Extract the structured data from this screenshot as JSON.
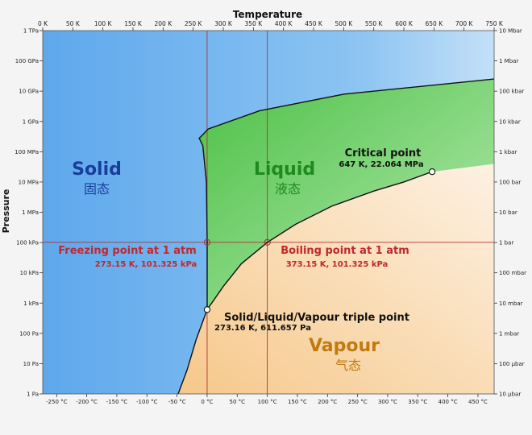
{
  "chart_data": {
    "type": "phase-diagram",
    "top_axis": {
      "title": "Temperature",
      "ticks": [
        {
          "label": "0 K",
          "K": 0
        },
        {
          "label": "50 K",
          "K": 50
        },
        {
          "label": "100 K",
          "K": 100
        },
        {
          "label": "150 K",
          "K": 150
        },
        {
          "label": "200 K",
          "K": 200
        },
        {
          "label": "250 K",
          "K": 250
        },
        {
          "label": "300 K",
          "K": 300
        },
        {
          "label": "350 K",
          "K": 350
        },
        {
          "label": "400 K",
          "K": 400
        },
        {
          "label": "450 K",
          "K": 450
        },
        {
          "label": "500 K",
          "K": 500
        },
        {
          "label": "550 K",
          "K": 550
        },
        {
          "label": "600 K",
          "K": 600
        },
        {
          "label": "650 K",
          "K": 650
        },
        {
          "label": "700 K",
          "K": 700
        },
        {
          "label": "750 K",
          "K": 750
        }
      ]
    },
    "bottom_axis": {
      "ticks": [
        {
          "label": "-250 °C",
          "K": 23.15
        },
        {
          "label": "-200 °C",
          "K": 73.15
        },
        {
          "label": "-150 °C",
          "K": 123.15
        },
        {
          "label": "-100 °C",
          "K": 173.15
        },
        {
          "label": "-50 °C",
          "K": 223.15
        },
        {
          "label": "0 °C",
          "K": 273.15
        },
        {
          "label": "50 °C",
          "K": 323.15
        },
        {
          "label": "100 °C",
          "K": 373.15
        },
        {
          "label": "150 °C",
          "K": 423.15
        },
        {
          "label": "200 °C",
          "K": 473.15
        },
        {
          "label": "250 °C",
          "K": 523.15
        },
        {
          "label": "300 °C",
          "K": 573.15
        },
        {
          "label": "350 °C",
          "K": 623.15
        },
        {
          "label": "400 °C",
          "K": 673.15
        },
        {
          "label": "450 °C",
          "K": 723.15
        }
      ]
    },
    "left_axis": {
      "title": "Pressure",
      "ticks": [
        {
          "label": "1 TPa",
          "log10Pa": 12
        },
        {
          "label": "100 GPa",
          "log10Pa": 11
        },
        {
          "label": "10 GPa",
          "log10Pa": 10
        },
        {
          "label": "1 GPa",
          "log10Pa": 9
        },
        {
          "label": "100 MPa",
          "log10Pa": 8
        },
        {
          "label": "10 MPa",
          "log10Pa": 7
        },
        {
          "label": "1 MPa",
          "log10Pa": 6
        },
        {
          "label": "100 kPa",
          "log10Pa": 5
        },
        {
          "label": "10 kPa",
          "log10Pa": 4
        },
        {
          "label": "1 kPa",
          "log10Pa": 3
        },
        {
          "label": "100 Pa",
          "log10Pa": 2
        },
        {
          "label": "10 Pa",
          "log10Pa": 1
        },
        {
          "label": "1 Pa",
          "log10Pa": 0
        }
      ]
    },
    "right_axis": {
      "ticks": [
        {
          "label": "10 Mbar",
          "log10Pa": 12
        },
        {
          "label": "1 Mbar",
          "log10Pa": 11
        },
        {
          "label": "100 kbar",
          "log10Pa": 10
        },
        {
          "label": "10 kbar",
          "log10Pa": 9
        },
        {
          "label": "1 kbar",
          "log10Pa": 8
        },
        {
          "label": "100 bar",
          "log10Pa": 7
        },
        {
          "label": "10 bar",
          "log10Pa": 6
        },
        {
          "label": "1 bar",
          "log10Pa": 5
        },
        {
          "label": "100 mbar",
          "log10Pa": 4
        },
        {
          "label": "10 mbar",
          "log10Pa": 3
        },
        {
          "label": "1 mbar",
          "log10Pa": 2
        },
        {
          "label": "100 µbar",
          "log10Pa": 1
        },
        {
          "label": "10 µbar",
          "log10Pa": 0
        }
      ]
    },
    "x_range_K": [
      0,
      750
    ],
    "y_range_log10Pa": [
      0,
      12
    ],
    "y_scale": "log",
    "regions": [
      {
        "name": "Solid",
        "name_zh": "固态",
        "color": "#1a3d9c",
        "fill": "#6fb4ee"
      },
      {
        "name": "Liquid",
        "name_zh": "液态",
        "color": "#1e8a1e",
        "fill": "#6fd26a"
      },
      {
        "name": "Vapour",
        "name_zh": "气态",
        "color": "#c07a10",
        "fill": "#f9d9ac"
      }
    ],
    "points": [
      {
        "name": "Critical point",
        "value": "647 K, 22.064 MPa",
        "K": 647,
        "log10Pa": 7.34,
        "color": "#111111"
      },
      {
        "name": "Freezing point at 1 atm",
        "value": "273.15 K, 101.325 kPa",
        "K": 273.15,
        "log10Pa": 5.006,
        "color": "#c0282c"
      },
      {
        "name": "Boiling point at 1 atm",
        "value": "373.15 K, 101.325 kPa",
        "K": 373.15,
        "log10Pa": 5.006,
        "color": "#c0282c"
      },
      {
        "name": "Solid/Liquid/Vapour triple point",
        "value": "273.16 K, 611.657 Pa",
        "K": 273.16,
        "log10Pa": 2.786,
        "color": "#111111"
      }
    ],
    "curves": {
      "sublimation": [
        [
          225,
          0
        ],
        [
          240,
          0.8
        ],
        [
          255,
          1.8
        ],
        [
          273.16,
          2.786
        ]
      ],
      "vaporization": [
        [
          273.16,
          2.786
        ],
        [
          300,
          3.55
        ],
        [
          330,
          4.3
        ],
        [
          373.15,
          5.006
        ],
        [
          420,
          5.6
        ],
        [
          480,
          6.2
        ],
        [
          550,
          6.7
        ],
        [
          600,
          7.0
        ],
        [
          647,
          7.34
        ]
      ],
      "melting": [
        [
          273.16,
          2.786
        ],
        [
          273.15,
          5.0
        ],
        [
          272,
          7.0
        ],
        [
          266,
          8.2
        ],
        [
          260,
          8.45
        ],
        [
          263,
          8.5
        ],
        [
          275,
          8.75
        ],
        [
          360,
          9.35
        ],
        [
          500,
          9.9
        ],
        [
          750,
          10.4
        ]
      ]
    },
    "reference_lines": [
      {
        "type": "vertical",
        "K": 273.15
      },
      {
        "type": "vertical",
        "K": 373.15
      },
      {
        "type": "horizontal",
        "log10Pa": 5.006
      }
    ],
    "colors": {
      "solid_fill": "#6fb4ee",
      "liquid_fill": "#6fd26a",
      "vapour_fill": "#f9d9ac",
      "ref_line": "#b0323a",
      "label_red": "#c0282c"
    }
  }
}
